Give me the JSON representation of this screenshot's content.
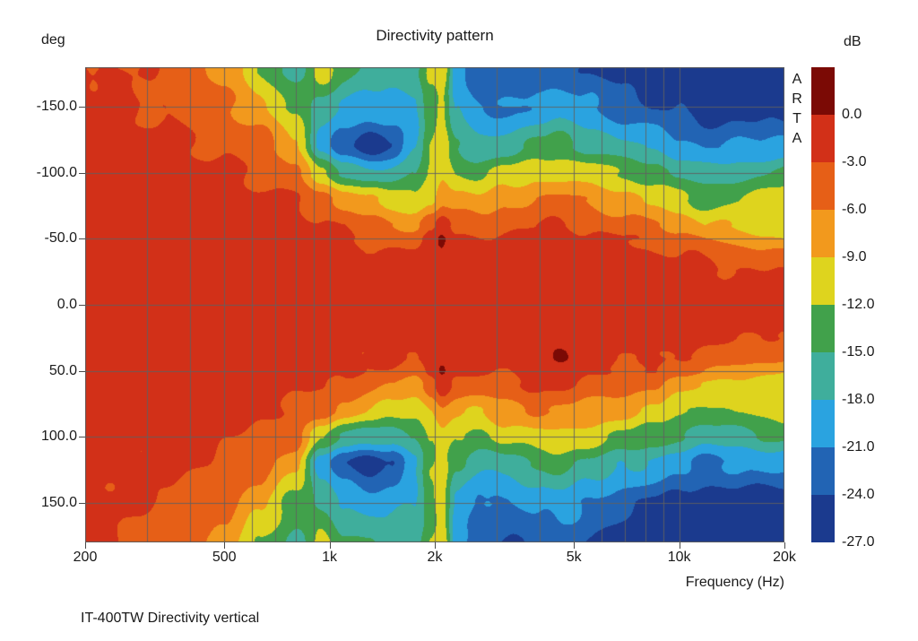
{
  "title": "Directivity pattern",
  "caption": "IT-400TW Directivity vertical",
  "watermark": {
    "letters": [
      "A",
      "R",
      "T",
      "A"
    ]
  },
  "y_axis": {
    "unit_label": "deg",
    "ticks": [
      {
        "label": "-150.0",
        "value": -150
      },
      {
        "label": "-100.0",
        "value": -100
      },
      {
        "label": "-50.0",
        "value": -50
      },
      {
        "label": "0.0",
        "value": 0
      },
      {
        "label": "50.0",
        "value": 50
      },
      {
        "label": "100.0",
        "value": 100
      },
      {
        "label": "150.0",
        "value": 150
      }
    ]
  },
  "x_axis": {
    "label": "Frequency (Hz)",
    "ticks": [
      {
        "label": "200",
        "value": 200
      },
      {
        "label": "500",
        "value": 500
      },
      {
        "label": "1k",
        "value": 1000
      },
      {
        "label": "2k",
        "value": 2000
      },
      {
        "label": "5k",
        "value": 5000
      },
      {
        "label": "10k",
        "value": 10000
      },
      {
        "label": "20k",
        "value": 20000
      }
    ]
  },
  "colorbar": {
    "unit_label": "dB",
    "tick_labels": [
      "0.0",
      "-3.0",
      "-6.0",
      "-9.0",
      "-12.0",
      "-15.0",
      "-18.0",
      "-21.0",
      "-24.0",
      "-27.0"
    ]
  },
  "chart_data": {
    "type": "heatmap",
    "title": "Directivity pattern",
    "xlabel": "Frequency (Hz)",
    "ylabel": "deg",
    "x_scale": "log",
    "x_range": [
      200,
      20000
    ],
    "y_range": [
      -180,
      180
    ],
    "value_unit": "dB",
    "value_range": [
      -27,
      0
    ],
    "band_step_db": 3,
    "legend_position": "right-colorbar",
    "palette_hex": [
      "#7b0a05",
      "#d23018",
      "#e65f17",
      "#f2991d",
      "#ded41e",
      "#41a14b",
      "#3fae9c",
      "#2aa3e0",
      "#2264b4",
      "#1b3a8e"
    ],
    "layout": {
      "grid": true,
      "x_gridlines": [
        300,
        400,
        500,
        600,
        700,
        800,
        900,
        1000,
        2000,
        3000,
        4000,
        5000,
        6000,
        7000,
        8000,
        9000,
        10000
      ],
      "y_gridlines": [
        -150,
        -100,
        -50,
        0,
        50,
        100,
        150
      ]
    },
    "angles_deg": [
      -180,
      -150,
      -120,
      -100,
      -80,
      -60,
      -50,
      -40,
      -25,
      0,
      25,
      40,
      50,
      60,
      80,
      100,
      120,
      150,
      180
    ],
    "frequencies": [
      200,
      300,
      400,
      500,
      630,
      800,
      950,
      1100,
      1300,
      1500,
      1750,
      1950,
      2100,
      2300,
      2700,
      3200,
      4000,
      4500,
      5500,
      7000,
      8500,
      10000,
      12000,
      15000,
      20000
    ],
    "values_db": [
      [
        -2.5,
        -2.2,
        -1.8,
        -1.6,
        -1.4,
        -1.2,
        -1.1,
        -1.1,
        -1.0,
        -1.0,
        -1.0,
        -1.1,
        -1.1,
        -1.2,
        -1.4,
        -1.6,
        -1.8,
        -2.2,
        -2.5
      ],
      [
        -3.5,
        -2.8,
        -2.2,
        -1.8,
        -1.5,
        -1.3,
        -1.2,
        -1.1,
        -1.0,
        -1.0,
        -1.0,
        -1.1,
        -1.2,
        -1.3,
        -1.5,
        -1.8,
        -2.2,
        -2.8,
        -3.5
      ],
      [
        -5.0,
        -3.8,
        -2.6,
        -2.1,
        -1.7,
        -1.4,
        -1.2,
        -1.1,
        -1.0,
        -1.0,
        -1.0,
        -1.1,
        -1.2,
        -1.4,
        -1.7,
        -2.1,
        -2.6,
        -3.8,
        -5.0
      ],
      [
        -7.0,
        -5.0,
        -3.4,
        -2.5,
        -1.9,
        -1.5,
        -1.3,
        -1.2,
        -1.0,
        -1.0,
        -1.0,
        -1.2,
        -1.3,
        -1.5,
        -1.9,
        -2.5,
        -3.4,
        -5.0,
        -7.0
      ],
      [
        -12.0,
        -8.0,
        -4.8,
        -3.2,
        -2.3,
        -1.7,
        -1.4,
        -1.2,
        -1.1,
        -1.0,
        -1.1,
        -1.2,
        -1.4,
        -1.7,
        -2.3,
        -3.2,
        -4.8,
        -8.0,
        -12.0
      ],
      [
        -16.0,
        -13.0,
        -8.0,
        -5.0,
        -3.2,
        -2.0,
        -1.6,
        -1.3,
        -1.1,
        -1.0,
        -1.1,
        -1.3,
        -1.6,
        -2.0,
        -3.2,
        -5.0,
        -8.0,
        -13.0,
        -16.0
      ],
      [
        -10.5,
        -16.0,
        -19.0,
        -12.0,
        -5.0,
        -2.4,
        -1.8,
        -1.5,
        -1.2,
        -1.0,
        -1.2,
        -1.5,
        -1.8,
        -2.4,
        -5.0,
        -12.0,
        -19.0,
        -16.0,
        -10.5
      ],
      [
        -14.0,
        -18.0,
        -24.0,
        -15.0,
        -7.0,
        -3.8,
        -2.8,
        -2.0,
        -1.4,
        -1.0,
        -1.4,
        -2.0,
        -2.8,
        -3.8,
        -7.0,
        -15.0,
        -24.0,
        -18.0,
        -14.0
      ],
      [
        -15.5,
        -19.0,
        -26.0,
        -17.0,
        -9.0,
        -5.0,
        -3.4,
        -2.4,
        -1.6,
        -1.1,
        -1.6,
        -2.4,
        -3.4,
        -5.0,
        -9.0,
        -17.0,
        -26.0,
        -19.0,
        -15.5
      ],
      [
        -16.5,
        -19.0,
        -24.0,
        -17.0,
        -10.5,
        -5.8,
        -3.8,
        -2.7,
        -1.8,
        -1.1,
        -1.8,
        -2.7,
        -3.8,
        -5.8,
        -10.5,
        -17.0,
        -24.0,
        -19.0,
        -16.5
      ],
      [
        -16.5,
        -18.5,
        -18.0,
        -15.5,
        -11.5,
        -6.8,
        -4.4,
        -3.1,
        -2.0,
        -1.2,
        -2.0,
        -3.1,
        -4.4,
        -6.8,
        -11.5,
        -15.5,
        -18.0,
        -18.5,
        -16.5
      ],
      [
        -11.5,
        -13.0,
        -12.5,
        -11.5,
        -9.0,
        -4.0,
        -2.0,
        -2.0,
        -1.6,
        -1.1,
        -1.6,
        -2.0,
        -2.0,
        -4.0,
        -9.0,
        -11.5,
        -12.5,
        -13.0,
        -11.5
      ],
      [
        -9.8,
        -11.0,
        -10.5,
        -9.5,
        -6.5,
        -1.8,
        0.4,
        -0.6,
        -1.2,
        -1.0,
        -1.2,
        -0.6,
        0.4,
        -1.8,
        -6.5,
        -9.5,
        -10.5,
        -11.0,
        -9.8
      ],
      [
        -20.0,
        -18.0,
        -15.0,
        -12.0,
        -8.0,
        -3.8,
        -2.2,
        -1.6,
        -1.3,
        -1.0,
        -1.3,
        -1.6,
        -2.2,
        -3.8,
        -8.0,
        -12.0,
        -15.0,
        -18.0,
        -20.0
      ],
      [
        -23.5,
        -21.5,
        -17.5,
        -13.0,
        -8.5,
        -4.4,
        -2.7,
        -1.9,
        -1.4,
        -1.0,
        -1.4,
        -1.9,
        -2.7,
        -4.4,
        -8.5,
        -13.0,
        -17.5,
        -21.5,
        -23.5
      ],
      [
        -24.0,
        -21.5,
        -16.5,
        -11.0,
        -7.0,
        -3.4,
        -2.4,
        -1.8,
        -1.3,
        -1.0,
        -1.3,
        -1.8,
        -2.4,
        -3.4,
        -7.0,
        -11.0,
        -16.5,
        -21.5,
        -24.0
      ],
      [
        -23.0,
        -20.0,
        -14.5,
        -9.8,
        -5.8,
        -2.9,
        -2.0,
        -1.5,
        -1.2,
        -1.0,
        -1.2,
        -1.5,
        -2.0,
        -2.9,
        -5.8,
        -9.8,
        -14.5,
        -20.0,
        -23.0
      ],
      [
        -22.5,
        -19.5,
        -14.0,
        -9.2,
        -5.6,
        -2.7,
        -1.8,
        0.3,
        -1.1,
        -1.0,
        -1.1,
        0.3,
        -1.8,
        -2.7,
        -5.6,
        -9.2,
        -14.0,
        -19.5,
        -22.5
      ],
      [
        -24.0,
        -21.0,
        -15.5,
        -10.5,
        -6.8,
        -3.6,
        -2.5,
        -1.9,
        -1.3,
        -1.0,
        -1.3,
        -1.9,
        -2.5,
        -3.6,
        -6.8,
        -10.5,
        -15.5,
        -21.0,
        -24.0
      ],
      [
        -25.5,
        -23.0,
        -17.5,
        -12.5,
        -8.2,
        -4.6,
        -3.1,
        -2.3,
        -1.5,
        -1.0,
        -1.5,
        -2.3,
        -3.1,
        -4.6,
        -8.2,
        -12.5,
        -17.5,
        -23.0,
        -25.5
      ],
      [
        -26.5,
        -24.0,
        -18.5,
        -13.5,
        -9.5,
        -5.8,
        -3.8,
        -2.7,
        -1.7,
        -1.0,
        -1.7,
        -2.7,
        -3.8,
        -5.8,
        -9.5,
        -13.5,
        -18.5,
        -24.0,
        -26.5
      ],
      [
        -27.0,
        -24.5,
        -20.0,
        -15.5,
        -11.5,
        -7.2,
        -4.8,
        -3.2,
        -1.9,
        -1.0,
        -1.9,
        -3.2,
        -4.8,
        -7.2,
        -11.5,
        -15.5,
        -20.0,
        -24.5,
        -27.0
      ],
      [
        -27.5,
        -25.5,
        -21.5,
        -17.0,
        -13.0,
        -8.8,
        -5.8,
        -3.8,
        -2.1,
        -1.0,
        -2.1,
        -3.8,
        -5.8,
        -8.8,
        -13.0,
        -17.0,
        -21.5,
        -25.5,
        -27.5
      ],
      [
        -28.0,
        -25.5,
        -21.0,
        -16.0,
        -11.5,
        -10.0,
        -7.5,
        -5.0,
        -2.5,
        -1.0,
        -2.5,
        -5.0,
        -7.5,
        -10.0,
        -11.5,
        -16.0,
        -21.0,
        -25.5,
        -28.0
      ],
      [
        -28.0,
        -25.5,
        -20.0,
        -14.5,
        -10.2,
        -10.8,
        -8.8,
        -6.0,
        -3.0,
        -1.4,
        -3.0,
        -6.0,
        -8.8,
        -10.8,
        -10.2,
        -14.5,
        -20.0,
        -25.5,
        -28.0
      ]
    ]
  }
}
